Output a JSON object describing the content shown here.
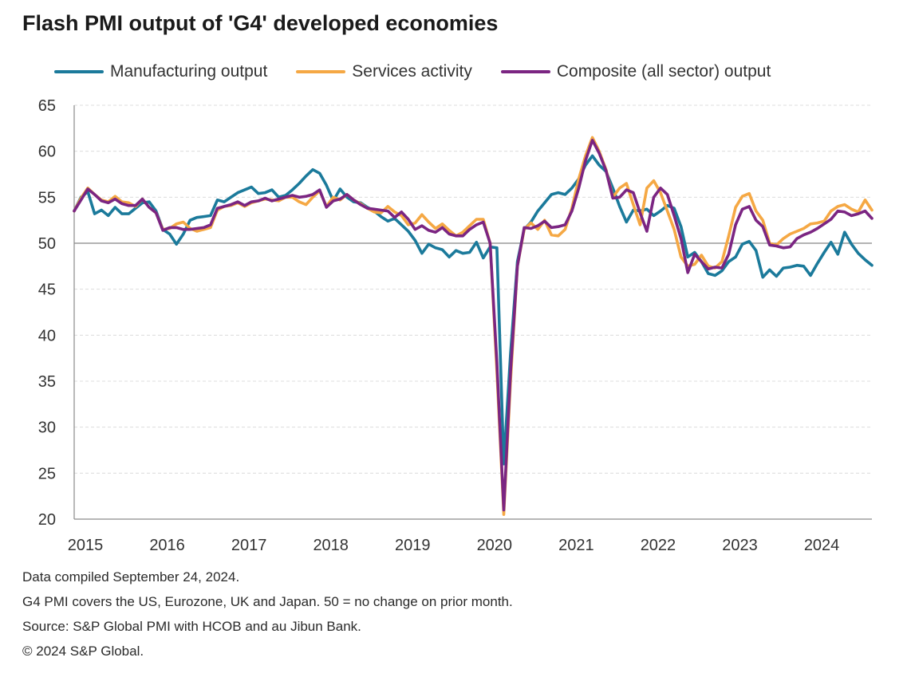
{
  "chart_data": {
    "type": "line",
    "title": "Flash PMI output of 'G4' developed economies",
    "ylim": [
      20,
      65
    ],
    "y_ticks": [
      20,
      25,
      30,
      35,
      40,
      45,
      50,
      55,
      60,
      65
    ],
    "x_ticks": [
      "2015",
      "2016",
      "2017",
      "2018",
      "2019",
      "2020",
      "2021",
      "2022",
      "2023",
      "2024"
    ],
    "x_start": "2015-01",
    "x_end": "2024-09",
    "reference_line": 50,
    "grid": true,
    "legend_position": "top",
    "series": [
      {
        "name": "Manufacturing output",
        "color": "#1b7a9b",
        "values": [
          53.5,
          55.0,
          55.6,
          53.2,
          53.6,
          53.0,
          53.9,
          53.2,
          53.2,
          53.8,
          54.4,
          54.5,
          53.5,
          51.5,
          51.0,
          49.9,
          51.0,
          52.5,
          52.8,
          52.9,
          53.0,
          54.7,
          54.5,
          55.0,
          55.5,
          55.8,
          56.1,
          55.4,
          55.5,
          55.8,
          55.0,
          55.2,
          55.8,
          56.5,
          57.3,
          58.0,
          57.6,
          56.3,
          54.6,
          55.9,
          55.0,
          54.5,
          54.4,
          53.9,
          53.5,
          52.9,
          52.4,
          52.7,
          52.0,
          51.3,
          50.3,
          48.9,
          49.9,
          49.5,
          49.3,
          48.5,
          49.2,
          48.9,
          49.0,
          50.1,
          48.4,
          49.6,
          49.5,
          26.0,
          38.0,
          48.0,
          51.5,
          52.3,
          53.5,
          54.4,
          55.3,
          55.5,
          55.3,
          56.0,
          57.0,
          58.5,
          59.5,
          58.5,
          57.8,
          56.0,
          54.0,
          52.3,
          53.6,
          53.5,
          53.7,
          53.0,
          53.5,
          54.1,
          53.8,
          51.8,
          48.5,
          49.0,
          48.0,
          46.7,
          46.5,
          47.0,
          48.0,
          48.5,
          49.9,
          50.2,
          49.2,
          46.3,
          47.1,
          46.4,
          47.3,
          47.4,
          47.6,
          47.5,
          46.5,
          47.8,
          49.0,
          50.1,
          48.8,
          51.2,
          49.9,
          48.9,
          48.2,
          47.6
        ]
      },
      {
        "name": "Services activity",
        "color": "#f5a844",
        "values": [
          53.5,
          54.9,
          56.0,
          55.3,
          54.7,
          54.5,
          55.1,
          54.5,
          54.4,
          54.0,
          54.8,
          53.9,
          53.3,
          51.5,
          51.6,
          52.1,
          52.3,
          51.6,
          51.3,
          51.5,
          51.7,
          53.6,
          54.0,
          54.1,
          54.4,
          54.0,
          54.4,
          54.6,
          54.8,
          54.7,
          54.6,
          55.0,
          55.0,
          54.5,
          54.2,
          55.0,
          55.7,
          54.0,
          55.0,
          54.7,
          55.3,
          54.7,
          54.3,
          53.8,
          53.4,
          53.3,
          54.0,
          53.4,
          53.0,
          52.0,
          52.2,
          53.1,
          52.3,
          51.6,
          52.1,
          51.4,
          50.8,
          51.2,
          51.9,
          52.6,
          52.6,
          50.0,
          36.0,
          20.5,
          35.0,
          47.5,
          51.5,
          52.2,
          51.5,
          52.5,
          50.9,
          50.8,
          51.5,
          53.8,
          57.0,
          59.5,
          61.5,
          60.0,
          58.0,
          55.0,
          56.0,
          56.5,
          54.2,
          52.0,
          56.0,
          56.8,
          55.5,
          53.5,
          51.5,
          48.5,
          47.5,
          47.7,
          48.7,
          47.5,
          47.3,
          48.0,
          50.8,
          53.9,
          55.1,
          55.4,
          53.5,
          52.5,
          50.0,
          49.8,
          50.5,
          51.0,
          51.3,
          51.6,
          52.1,
          52.2,
          52.4,
          53.5,
          54.0,
          54.2,
          53.7,
          53.4,
          54.7,
          53.6
        ]
      },
      {
        "name": "Composite (all sector) output",
        "color": "#7b2582",
        "values": [
          53.5,
          54.7,
          55.9,
          55.3,
          54.6,
          54.4,
          54.8,
          54.3,
          54.1,
          54.1,
          54.8,
          53.9,
          53.3,
          51.4,
          51.7,
          51.7,
          51.5,
          51.5,
          51.6,
          51.7,
          52.0,
          53.8,
          54.0,
          54.2,
          54.5,
          54.1,
          54.5,
          54.6,
          54.9,
          54.6,
          54.8,
          55.0,
          55.2,
          55.0,
          55.1,
          55.3,
          55.8,
          53.9,
          54.6,
          54.8,
          55.3,
          54.7,
          54.2,
          53.8,
          53.7,
          53.6,
          53.5,
          52.8,
          53.4,
          52.6,
          51.5,
          51.9,
          51.4,
          51.2,
          51.7,
          51.0,
          50.8,
          50.8,
          51.5,
          52.0,
          52.3,
          50.0,
          37.0,
          21.0,
          36.0,
          47.5,
          51.7,
          51.6,
          51.9,
          52.4,
          51.7,
          51.8,
          52.0,
          53.5,
          56.0,
          59.0,
          61.2,
          59.8,
          57.9,
          54.9,
          55.0,
          55.8,
          55.5,
          53.3,
          51.3,
          55.0,
          56.0,
          55.3,
          53.0,
          50.5,
          46.8,
          48.8,
          48.0,
          47.2,
          47.4,
          47.3,
          48.8,
          52.0,
          53.7,
          54.0,
          52.5,
          51.8,
          49.8,
          49.7,
          49.5,
          49.6,
          50.5,
          50.9,
          51.2,
          51.6,
          52.1,
          52.6,
          53.5,
          53.4,
          53.0,
          53.2,
          53.5,
          52.7
        ]
      }
    ]
  },
  "notes": [
    "Data compiled September 24, 2024.",
    "G4 PMI covers the US, Eurozone, UK and Japan. 50 = no change on prior month.",
    "Source: S&P Global PMI with HCOB and au Jibun Bank.",
    "© 2024 S&P Global."
  ]
}
